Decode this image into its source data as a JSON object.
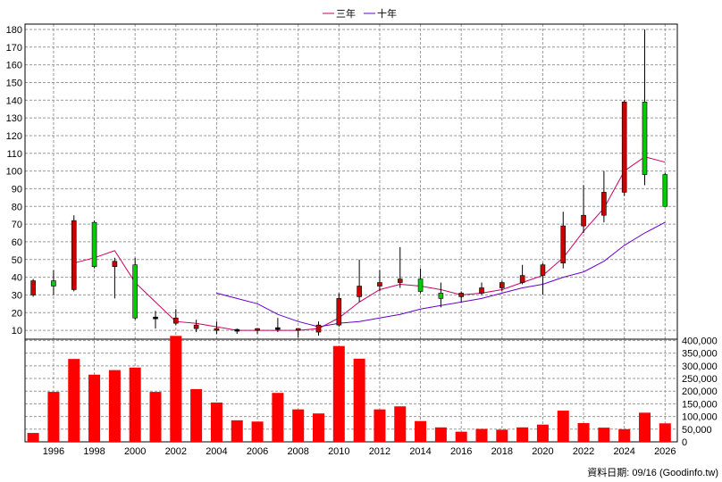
{
  "legend": {
    "items": [
      {
        "label": "三年",
        "color": "#cc0066"
      },
      {
        "label": "十年",
        "color": "#6600cc"
      }
    ]
  },
  "footer": {
    "text": "資料日期: 09/16 (Goodinfo.tw)"
  },
  "chart_data": [
    {
      "type": "candlestick",
      "x_ticks": [
        "1996",
        "1998",
        "2000",
        "2002",
        "2004",
        "2006",
        "2008",
        "2010",
        "2012",
        "2014",
        "2016",
        "2018",
        "2020",
        "2022",
        "2024",
        "2026"
      ],
      "y_ticks": [
        10,
        20,
        30,
        40,
        50,
        60,
        70,
        80,
        90,
        100,
        110,
        120,
        130,
        140,
        150,
        160,
        170,
        180
      ],
      "ylim": [
        5,
        183
      ],
      "xlim": [
        1994.6,
        2026.6
      ],
      "up_color": "#00cc00",
      "down_color": "#cc0000",
      "candles": [
        {
          "year": 1995,
          "open": 38,
          "close": 30,
          "high": 39,
          "low": 29
        },
        {
          "year": 1996,
          "open": 35,
          "close": 38,
          "high": 44,
          "low": 30
        },
        {
          "year": 1997,
          "open": 72,
          "close": 33,
          "high": 75,
          "low": 32
        },
        {
          "year": 1998,
          "open": 46,
          "close": 71,
          "high": 72,
          "low": 45
        },
        {
          "year": 1999,
          "open": 49,
          "close": 46,
          "high": 51,
          "low": 28
        },
        {
          "year": 2000,
          "open": 17,
          "close": 47,
          "high": 51,
          "low": 16
        },
        {
          "year": 2001,
          "open": 17,
          "close": 17,
          "high": 21,
          "low": 11
        },
        {
          "year": 2002,
          "open": 17,
          "close": 14,
          "high": 22,
          "low": 13
        },
        {
          "year": 2003,
          "open": 13,
          "close": 11,
          "high": 16,
          "low": 9
        },
        {
          "year": 2004,
          "open": 11,
          "close": 10,
          "high": 15,
          "low": 8
        },
        {
          "year": 2005,
          "open": 10,
          "close": 10,
          "high": 11,
          "low": 8
        },
        {
          "year": 2006,
          "open": 11,
          "close": 10,
          "high": 11,
          "low": 8
        },
        {
          "year": 2007,
          "open": 11,
          "close": 11,
          "high": 17,
          "low": 9
        },
        {
          "year": 2008,
          "open": 11,
          "close": 10,
          "high": 11,
          "low": 6
        },
        {
          "year": 2009,
          "open": 13,
          "close": 9,
          "high": 15,
          "low": 7
        },
        {
          "year": 2010,
          "open": 28,
          "close": 13,
          "high": 31,
          "low": 12
        },
        {
          "year": 2011,
          "open": 35,
          "close": 29,
          "high": 50,
          "low": 26
        },
        {
          "year": 2012,
          "open": 37,
          "close": 35,
          "high": 44,
          "low": 32
        },
        {
          "year": 2013,
          "open": 39,
          "close": 37,
          "high": 57,
          "low": 34
        },
        {
          "year": 2014,
          "open": 32,
          "close": 39,
          "high": 45,
          "low": 31
        },
        {
          "year": 2015,
          "open": 28,
          "close": 31,
          "high": 37,
          "low": 23
        },
        {
          "year": 2016,
          "open": 31,
          "close": 29,
          "high": 32,
          "low": 26
        },
        {
          "year": 2017,
          "open": 34,
          "close": 31,
          "high": 37,
          "low": 30
        },
        {
          "year": 2018,
          "open": 37,
          "close": 34,
          "high": 38,
          "low": 32
        },
        {
          "year": 2019,
          "open": 41,
          "close": 37,
          "high": 47,
          "low": 36
        },
        {
          "year": 2020,
          "open": 47,
          "close": 41,
          "high": 48,
          "low": 30
        },
        {
          "year": 2021,
          "open": 69,
          "close": 48,
          "high": 77,
          "low": 45
        },
        {
          "year": 2022,
          "open": 75,
          "close": 69,
          "high": 92,
          "low": 65
        },
        {
          "year": 2023,
          "open": 88,
          "close": 75,
          "high": 100,
          "low": 71
        },
        {
          "year": 2024,
          "open": 139,
          "close": 88,
          "high": 140,
          "low": 86
        },
        {
          "year": 2025,
          "open": 98,
          "close": 139,
          "high": 180,
          "low": 92
        },
        {
          "year": 2026,
          "open": 80,
          "close": 98,
          "high": 99,
          "low": 80
        }
      ],
      "series": [
        {
          "name": "三年",
          "color": "#cc0066",
          "points": [
            [
              1997,
              48
            ],
            [
              1998,
              51
            ],
            [
              1999,
              55
            ],
            [
              2000,
              37
            ],
            [
              2001,
              26
            ],
            [
              2002,
              15
            ],
            [
              2003,
              14
            ],
            [
              2004,
              12
            ],
            [
              2005,
              10
            ],
            [
              2006,
              10
            ],
            [
              2007,
              10
            ],
            [
              2008,
              10
            ],
            [
              2009,
              11
            ],
            [
              2010,
              17
            ],
            [
              2011,
              26
            ],
            [
              2012,
              33
            ],
            [
              2013,
              36
            ],
            [
              2014,
              35
            ],
            [
              2015,
              33
            ],
            [
              2016,
              30
            ],
            [
              2017,
              31
            ],
            [
              2018,
              33
            ],
            [
              2019,
              37
            ],
            [
              2020,
              41
            ],
            [
              2021,
              51
            ],
            [
              2022,
              66
            ],
            [
              2023,
              79
            ],
            [
              2024,
              100
            ],
            [
              2025,
              108
            ],
            [
              2026,
              105
            ]
          ]
        },
        {
          "name": "十年",
          "color": "#6600cc",
          "points": [
            [
              2004,
              31
            ],
            [
              2005,
              28
            ],
            [
              2006,
              25
            ],
            [
              2007,
              19
            ],
            [
              2008,
              15
            ],
            [
              2009,
              12
            ],
            [
              2010,
              14
            ],
            [
              2011,
              15
            ],
            [
              2012,
              17
            ],
            [
              2013,
              19
            ],
            [
              2014,
              22
            ],
            [
              2015,
              24
            ],
            [
              2016,
              26
            ],
            [
              2017,
              28
            ],
            [
              2018,
              31
            ],
            [
              2019,
              34
            ],
            [
              2020,
              36
            ],
            [
              2021,
              40
            ],
            [
              2022,
              43
            ],
            [
              2023,
              49
            ],
            [
              2024,
              58
            ],
            [
              2025,
              65
            ],
            [
              2026,
              71
            ]
          ]
        }
      ]
    },
    {
      "type": "bar",
      "y_ticks": [
        "0",
        "50,000",
        "100,000",
        "150,000",
        "200,000",
        "250,000",
        "300,000",
        "350,000",
        "400,000"
      ],
      "ylim": [
        0,
        405000
      ],
      "bar_color": "#ff0000",
      "bars": [
        {
          "year": 1995,
          "value": 35000
        },
        {
          "year": 1996,
          "value": 197000
        },
        {
          "year": 1997,
          "value": 327000
        },
        {
          "year": 1998,
          "value": 265000
        },
        {
          "year": 1999,
          "value": 283000
        },
        {
          "year": 2000,
          "value": 293000
        },
        {
          "year": 2001,
          "value": 197000
        },
        {
          "year": 2002,
          "value": 418000
        },
        {
          "year": 2003,
          "value": 208000
        },
        {
          "year": 2004,
          "value": 155000
        },
        {
          "year": 2005,
          "value": 85000
        },
        {
          "year": 2006,
          "value": 80000
        },
        {
          "year": 2007,
          "value": 193000
        },
        {
          "year": 2008,
          "value": 128000
        },
        {
          "year": 2009,
          "value": 112000
        },
        {
          "year": 2010,
          "value": 378000
        },
        {
          "year": 2011,
          "value": 328000
        },
        {
          "year": 2012,
          "value": 128000
        },
        {
          "year": 2013,
          "value": 140000
        },
        {
          "year": 2014,
          "value": 82000
        },
        {
          "year": 2015,
          "value": 57000
        },
        {
          "year": 2016,
          "value": 40000
        },
        {
          "year": 2017,
          "value": 51000
        },
        {
          "year": 2018,
          "value": 48000
        },
        {
          "year": 2019,
          "value": 57000
        },
        {
          "year": 2020,
          "value": 68000
        },
        {
          "year": 2021,
          "value": 123000
        },
        {
          "year": 2022,
          "value": 74000
        },
        {
          "year": 2023,
          "value": 56000
        },
        {
          "year": 2024,
          "value": 50000
        },
        {
          "year": 2025,
          "value": 115000
        },
        {
          "year": 2026,
          "value": 73000
        }
      ]
    }
  ]
}
